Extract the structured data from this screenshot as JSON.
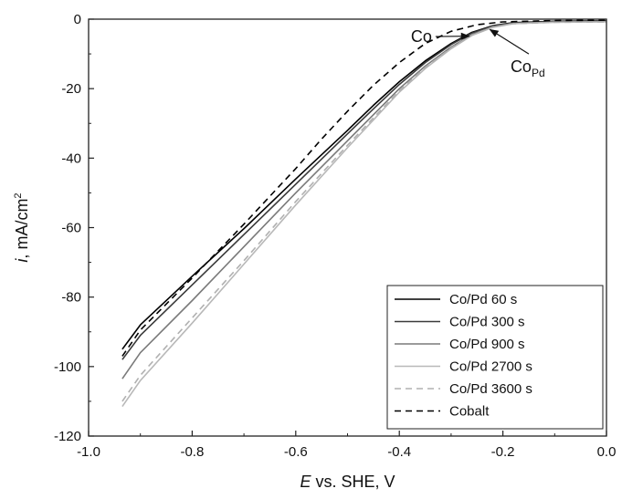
{
  "chart_data": {
    "type": "line",
    "xlabel": {
      "italic": "E",
      "rest": " vs. SHE, V"
    },
    "ylabel": {
      "italic": "i",
      "rest": ", mA/cm",
      "sup": "2"
    },
    "xlim": [
      -1.0,
      0.0
    ],
    "ylim": [
      -120,
      0
    ],
    "xticks": [
      -1.0,
      -0.8,
      -0.6,
      -0.4,
      -0.2,
      0.0
    ],
    "xtick_labels": [
      "-1.0",
      "-0.8",
      "-0.6",
      "-0.4",
      "-0.2",
      "0.0"
    ],
    "yticks": [
      -120,
      -100,
      -80,
      -60,
      -40,
      -20,
      0
    ],
    "ytick_labels": [
      "-120",
      "-100",
      "-80",
      "-60",
      "-40",
      "-20",
      "0"
    ],
    "grid": false,
    "legend_position": "bottom-right",
    "series": [
      {
        "name": "Co/Pd 60 s",
        "color": "#000000",
        "dash": "solid",
        "points": [
          [
            -0.935,
            -95.0
          ],
          [
            -0.9,
            -88.0
          ],
          [
            -0.8,
            -74.0
          ],
          [
            -0.7,
            -60.3
          ],
          [
            -0.6,
            -46.0
          ],
          [
            -0.5,
            -32.0
          ],
          [
            -0.45,
            -24.8
          ],
          [
            -0.4,
            -18.0
          ],
          [
            -0.35,
            -12.0
          ],
          [
            -0.3,
            -7.0
          ],
          [
            -0.26,
            -3.8
          ],
          [
            -0.22,
            -1.9
          ],
          [
            -0.18,
            -1.0
          ],
          [
            -0.1,
            -0.6
          ],
          [
            0.0,
            -0.5
          ]
        ]
      },
      {
        "name": "Co/Pd 300 s",
        "color": "#3a3a3a",
        "dash": "solid",
        "points": [
          [
            -0.935,
            -98.0
          ],
          [
            -0.9,
            -91.0
          ],
          [
            -0.8,
            -76.5
          ],
          [
            -0.7,
            -62.0
          ],
          [
            -0.6,
            -47.5
          ],
          [
            -0.5,
            -33.0
          ],
          [
            -0.45,
            -25.8
          ],
          [
            -0.4,
            -18.8
          ],
          [
            -0.35,
            -12.5
          ],
          [
            -0.3,
            -7.3
          ],
          [
            -0.26,
            -4.0
          ],
          [
            -0.22,
            -2.0
          ],
          [
            -0.18,
            -1.1
          ],
          [
            -0.1,
            -0.7
          ],
          [
            0.0,
            -0.6
          ]
        ]
      },
      {
        "name": "Co/Pd 900 s",
        "color": "#7a7a7a",
        "dash": "solid",
        "points": [
          [
            -0.935,
            -103.5
          ],
          [
            -0.9,
            -96.0
          ],
          [
            -0.8,
            -81.0
          ],
          [
            -0.7,
            -65.5
          ],
          [
            -0.6,
            -50.0
          ],
          [
            -0.5,
            -35.0
          ],
          [
            -0.45,
            -27.5
          ],
          [
            -0.4,
            -20.0
          ],
          [
            -0.35,
            -13.5
          ],
          [
            -0.3,
            -8.0
          ],
          [
            -0.26,
            -4.4
          ],
          [
            -0.22,
            -2.2
          ],
          [
            -0.18,
            -1.2
          ],
          [
            -0.1,
            -0.8
          ],
          [
            0.0,
            -0.7
          ]
        ]
      },
      {
        "name": "Co/Pd 2700 s",
        "color": "#b8b8b8",
        "dash": "solid",
        "points": [
          [
            -0.935,
            -111.5
          ],
          [
            -0.9,
            -104.0
          ],
          [
            -0.8,
            -87.5
          ],
          [
            -0.7,
            -70.5
          ],
          [
            -0.6,
            -53.5
          ],
          [
            -0.5,
            -37.0
          ],
          [
            -0.45,
            -29.0
          ],
          [
            -0.4,
            -21.0
          ],
          [
            -0.35,
            -14.2
          ],
          [
            -0.3,
            -8.5
          ],
          [
            -0.26,
            -4.7
          ],
          [
            -0.22,
            -2.4
          ],
          [
            -0.18,
            -1.3
          ],
          [
            -0.1,
            -0.9
          ],
          [
            0.0,
            -0.8
          ]
        ]
      },
      {
        "name": "Co/Pd 3600 s",
        "color": "#b0b0b0",
        "dash": "dashed",
        "points": [
          [
            -0.935,
            -110.0
          ],
          [
            -0.9,
            -102.5
          ],
          [
            -0.8,
            -86.0
          ],
          [
            -0.7,
            -69.5
          ],
          [
            -0.6,
            -52.5
          ],
          [
            -0.5,
            -36.3
          ],
          [
            -0.45,
            -28.4
          ],
          [
            -0.4,
            -20.6
          ],
          [
            -0.35,
            -13.9
          ],
          [
            -0.3,
            -8.3
          ],
          [
            -0.26,
            -4.6
          ],
          [
            -0.22,
            -2.3
          ],
          [
            -0.18,
            -1.3
          ],
          [
            -0.1,
            -0.9
          ],
          [
            0.0,
            -0.8
          ]
        ]
      },
      {
        "name": "Cobalt",
        "color": "#000000",
        "dash": "dashed",
        "points": [
          [
            -0.935,
            -97.0
          ],
          [
            -0.9,
            -89.5
          ],
          [
            -0.8,
            -74.5
          ],
          [
            -0.7,
            -59.0
          ],
          [
            -0.65,
            -51.0
          ],
          [
            -0.6,
            -43.0
          ],
          [
            -0.55,
            -34.5
          ],
          [
            -0.5,
            -26.5
          ],
          [
            -0.45,
            -19.0
          ],
          [
            -0.4,
            -12.5
          ],
          [
            -0.35,
            -7.0
          ],
          [
            -0.3,
            -3.5
          ],
          [
            -0.25,
            -1.6
          ],
          [
            -0.2,
            -0.8
          ],
          [
            -0.1,
            -0.4
          ],
          [
            0.0,
            -0.3
          ]
        ]
      }
    ],
    "annotations": [
      {
        "text": "Co",
        "sub": "",
        "arrow_from": [
          -0.33,
          -5.0
        ],
        "arrow_to": [
          -0.265,
          -4.9
        ]
      },
      {
        "text": "Co",
        "sub": "Pd",
        "arrow_from": [
          -0.15,
          -10.0
        ],
        "arrow_to": [
          -0.225,
          -3.0
        ]
      }
    ]
  }
}
